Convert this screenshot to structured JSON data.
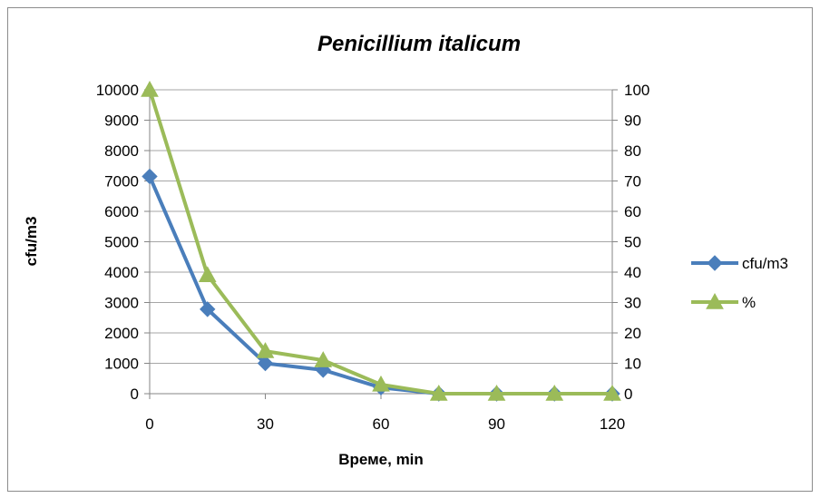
{
  "chart_data": {
    "type": "line",
    "title": "Penicillium italicum",
    "xlabel": "Време, min",
    "ylabel": "cfu/m3",
    "y2label": "",
    "x": [
      0,
      15,
      30,
      45,
      60,
      75,
      90,
      105,
      120
    ],
    "xlim": [
      0,
      120
    ],
    "xticks": [
      0,
      30,
      60,
      90,
      120
    ],
    "ylim": [
      0,
      10000
    ],
    "yticks": [
      0,
      1000,
      2000,
      3000,
      4000,
      5000,
      6000,
      7000,
      8000,
      9000,
      10000
    ],
    "y2lim": [
      0,
      100
    ],
    "y2ticks": [
      0,
      10,
      20,
      30,
      40,
      50,
      60,
      70,
      80,
      90,
      100
    ],
    "grid": true,
    "legend_position": "right",
    "series": [
      {
        "name": "cfu/m3",
        "axis": "left",
        "marker": "diamond",
        "color": "#4a7ebb",
        "values": [
          7150,
          2780,
          1000,
          780,
          200,
          0,
          0,
          0,
          0
        ]
      },
      {
        "name": "%",
        "axis": "right",
        "marker": "triangle",
        "color": "#9bbb59",
        "values": [
          100,
          39,
          14,
          11,
          3,
          0,
          0,
          0,
          0
        ]
      }
    ]
  }
}
